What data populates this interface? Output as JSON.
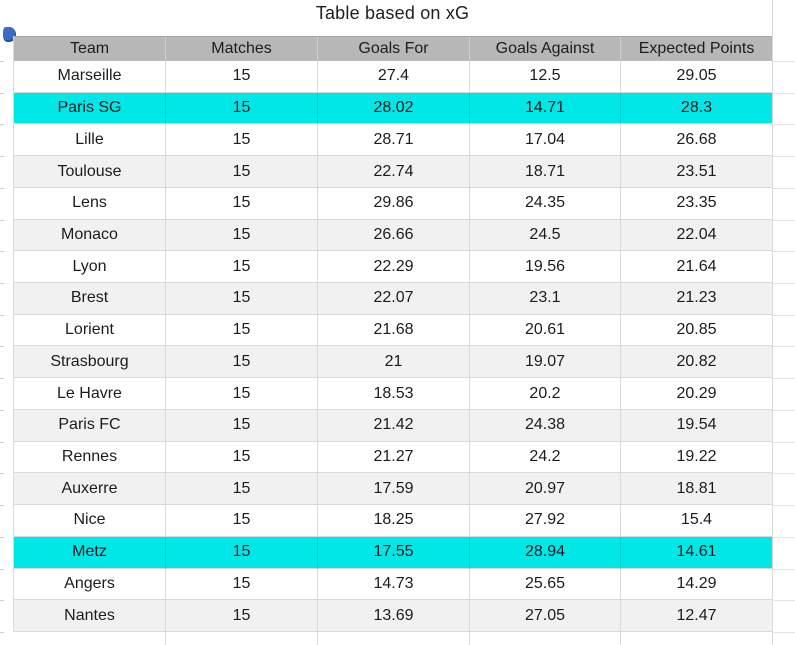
{
  "title": "Table based on xG",
  "icons": {
    "corner_marker": "blue-dot-marker"
  },
  "colors": {
    "header_bg": "#b7b7b7",
    "row_stripe": "#f1f1f1",
    "row_highlight": "#00e7e7",
    "gridline": "#d9d9d9",
    "text": "#1c1c1c",
    "marker_blue": "#3a6bc5"
  },
  "chart_data": {
    "type": "table",
    "title": "Table based on xG",
    "columns": [
      "Team",
      "Matches",
      "Goals For",
      "Goals Against",
      "Expected Points"
    ],
    "column_keys": [
      "team",
      "matches",
      "goals_for",
      "goals_against",
      "expected_points"
    ],
    "highlighted_teams": [
      "Paris SG",
      "Metz"
    ],
    "rows": [
      {
        "team": "Marseille",
        "matches": "15",
        "goals_for": "27.4",
        "goals_against": "12.5",
        "expected_points": "29.05",
        "highlight": false
      },
      {
        "team": "Paris SG",
        "matches": "15",
        "goals_for": "28.02",
        "goals_against": "14.71",
        "expected_points": "28.3",
        "highlight": true
      },
      {
        "team": "Lille",
        "matches": "15",
        "goals_for": "28.71",
        "goals_against": "17.04",
        "expected_points": "26.68",
        "highlight": false
      },
      {
        "team": "Toulouse",
        "matches": "15",
        "goals_for": "22.74",
        "goals_against": "18.71",
        "expected_points": "23.51",
        "highlight": false
      },
      {
        "team": "Lens",
        "matches": "15",
        "goals_for": "29.86",
        "goals_against": "24.35",
        "expected_points": "23.35",
        "highlight": false
      },
      {
        "team": "Monaco",
        "matches": "15",
        "goals_for": "26.66",
        "goals_against": "24.5",
        "expected_points": "22.04",
        "highlight": false
      },
      {
        "team": "Lyon",
        "matches": "15",
        "goals_for": "22.29",
        "goals_against": "19.56",
        "expected_points": "21.64",
        "highlight": false
      },
      {
        "team": "Brest",
        "matches": "15",
        "goals_for": "22.07",
        "goals_against": "23.1",
        "expected_points": "21.23",
        "highlight": false
      },
      {
        "team": "Lorient",
        "matches": "15",
        "goals_for": "21.68",
        "goals_against": "20.61",
        "expected_points": "20.85",
        "highlight": false
      },
      {
        "team": "Strasbourg",
        "matches": "15",
        "goals_for": "21",
        "goals_against": "19.07",
        "expected_points": "20.82",
        "highlight": false
      },
      {
        "team": "Le Havre",
        "matches": "15",
        "goals_for": "18.53",
        "goals_against": "20.2",
        "expected_points": "20.29",
        "highlight": false
      },
      {
        "team": "Paris FC",
        "matches": "15",
        "goals_for": "21.42",
        "goals_against": "24.38",
        "expected_points": "19.54",
        "highlight": false
      },
      {
        "team": "Rennes",
        "matches": "15",
        "goals_for": "21.27",
        "goals_against": "24.2",
        "expected_points": "19.22",
        "highlight": false
      },
      {
        "team": "Auxerre",
        "matches": "15",
        "goals_for": "17.59",
        "goals_against": "20.97",
        "expected_points": "18.81",
        "highlight": false
      },
      {
        "team": "Nice",
        "matches": "15",
        "goals_for": "18.25",
        "goals_against": "27.92",
        "expected_points": "15.4",
        "highlight": false
      },
      {
        "team": "Metz",
        "matches": "15",
        "goals_for": "17.55",
        "goals_against": "28.94",
        "expected_points": "14.61",
        "highlight": true
      },
      {
        "team": "Angers",
        "matches": "15",
        "goals_for": "14.73",
        "goals_against": "25.65",
        "expected_points": "14.29",
        "highlight": false
      },
      {
        "team": "Nantes",
        "matches": "15",
        "goals_for": "13.69",
        "goals_against": "27.05",
        "expected_points": "12.47",
        "highlight": false
      }
    ]
  }
}
